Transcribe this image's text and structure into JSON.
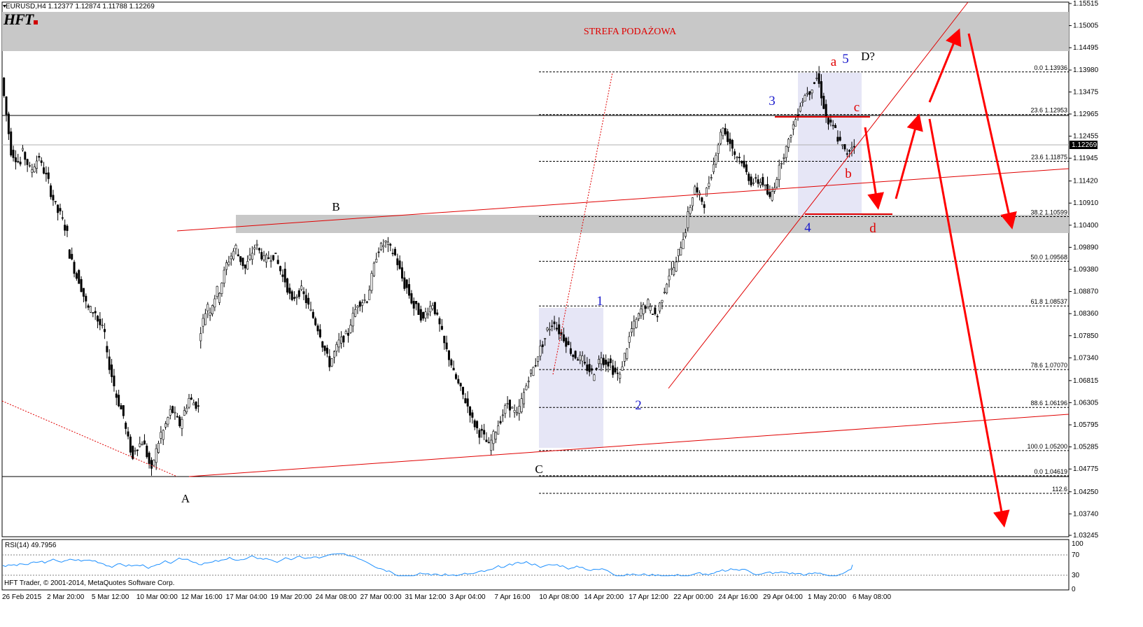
{
  "symbol_header": "EURUSD,H4  1.12377 1.12874 1.11788 1.12269",
  "logo_text": "HFT",
  "footer_text": "HFT Trader, © 2001-2014, MetaQuotes Software Corp.",
  "supply_zone_label": "STREFA PODAŻOWA",
  "rsi_label": "RSI(14) 49.7956",
  "current_price": "1.12269",
  "colors": {
    "candle": "#000000",
    "trend": "#e00000",
    "arrow": "#ff0000",
    "wave_blue": "#1a1acc",
    "zone": "#c8c8c8",
    "box": "#e6e6f6",
    "rsi": "#1e90ff"
  },
  "chart_data": {
    "type": "candlestick",
    "title": "EURUSD,H4",
    "ylim": [
      1.03245,
      1.15515
    ],
    "price_ticks": [
      "1.15515",
      "1.15005",
      "1.14495",
      "1.13980",
      "1.13475",
      "1.12965",
      "1.12455",
      "1.11945",
      "1.11420",
      "1.10910",
      "1.10400",
      "1.09890",
      "1.09380",
      "1.08870",
      "1.08360",
      "1.07850",
      "1.07340",
      "1.06815",
      "1.06305",
      "1.05795",
      "1.05285",
      "1.04775",
      "1.04250",
      "1.03740",
      "1.03245"
    ],
    "time_ticks": [
      "26 Feb 2015",
      "2 Mar 20:00",
      "5 Mar 12:00",
      "10 Mar 00:00",
      "12 Mar 16:00",
      "17 Mar 04:00",
      "19 Mar 20:00",
      "24 Mar 08:00",
      "27 Mar 00:00",
      "31 Mar 12:00",
      "3 Apr 04:00",
      "7 Apr 16:00",
      "10 Apr 08:00",
      "14 Apr 20:00",
      "17 Apr 12:00",
      "22 Apr 00:00",
      "24 Apr 16:00",
      "29 Apr 04:00",
      "1 May 20:00",
      "6 May 08:00"
    ],
    "close_path": [
      [
        1.138,
        1.121
      ],
      [
        1.121,
        1.118
      ],
      [
        1.122,
        1.117
      ],
      [
        1.116,
        1.12
      ],
      [
        1.119,
        1.114
      ],
      [
        1.113,
        1.107
      ],
      [
        1.108,
        1.102
      ],
      [
        1.099,
        1.092
      ],
      [
        1.093,
        1.086
      ],
      [
        1.085,
        1.084
      ],
      [
        1.083,
        1.079
      ],
      [
        1.076,
        1.067
      ],
      [
        1.066,
        1.06
      ],
      [
        1.059,
        1.05
      ],
      [
        1.052,
        1.054
      ],
      [
        1.055,
        1.047
      ],
      [
        1.048,
        1.056
      ],
      [
        1.055,
        1.061
      ],
      [
        1.062,
        1.058
      ],
      [
        1.058,
        1.064
      ],
      [
        1.064,
        1.062
      ],
      [
        1.078,
        1.086
      ],
      [
        1.083,
        1.089
      ],
      [
        1.087,
        1.095
      ],
      [
        1.095,
        1.099
      ],
      [
        1.098,
        1.094
      ],
      [
        1.094,
        1.099
      ],
      [
        1.1,
        1.096
      ],
      [
        1.096,
        1.097
      ],
      [
        1.098,
        1.092
      ],
      [
        1.093,
        1.086
      ],
      [
        1.087,
        1.089
      ],
      [
        1.089,
        1.084
      ],
      [
        1.084,
        1.079
      ],
      [
        1.078,
        1.072
      ],
      [
        1.072,
        1.077
      ],
      [
        1.077,
        1.079
      ],
      [
        1.08,
        1.086
      ],
      [
        1.086,
        1.087
      ],
      [
        1.087,
        1.097
      ],
      [
        1.098,
        1.1
      ],
      [
        1.1,
        1.097
      ],
      [
        1.097,
        1.09
      ],
      [
        1.091,
        1.085
      ],
      [
        1.086,
        1.082
      ],
      [
        1.083,
        1.086
      ],
      [
        1.086,
        1.079
      ],
      [
        1.078,
        1.072
      ],
      [
        1.071,
        1.066
      ],
      [
        1.066,
        1.061
      ],
      [
        1.06,
        1.056
      ],
      [
        1.057,
        1.053
      ],
      [
        1.053,
        1.058
      ],
      [
        1.058,
        1.063
      ],
      [
        1.063,
        1.06
      ],
      [
        1.06,
        1.067
      ],
      [
        1.068,
        1.072
      ],
      [
        1.073,
        1.078
      ],
      [
        1.079,
        1.082
      ],
      [
        1.081,
        1.078
      ],
      [
        1.078,
        1.074
      ],
      [
        1.074,
        1.073
      ],
      [
        1.072,
        1.07
      ],
      [
        1.069,
        1.074
      ],
      [
        1.073,
        1.072
      ],
      [
        1.071,
        1.069
      ],
      [
        1.07,
        1.078
      ],
      [
        1.079,
        1.083
      ],
      [
        1.084,
        1.086
      ],
      [
        1.085,
        1.083
      ],
      [
        1.084,
        1.091
      ],
      [
        1.092,
        1.095
      ],
      [
        1.096,
        1.103
      ],
      [
        1.104,
        1.113
      ],
      [
        1.112,
        1.109
      ],
      [
        1.11,
        1.118
      ],
      [
        1.119,
        1.127
      ],
      [
        1.126,
        1.122
      ],
      [
        1.121,
        1.119
      ],
      [
        1.118,
        1.114
      ],
      [
        1.114,
        1.114
      ],
      [
        1.115,
        1.11
      ],
      [
        1.11,
        1.117
      ],
      [
        1.118,
        1.123
      ],
      [
        1.124,
        1.13
      ],
      [
        1.131,
        1.135
      ],
      [
        1.134,
        1.138
      ],
      [
        1.139,
        1.129
      ],
      [
        1.128,
        1.126
      ],
      [
        1.125,
        1.121
      ],
      [
        1.12,
        1.123
      ]
    ],
    "rsi": {
      "period": 14,
      "value": 49.7956,
      "levels": [
        30,
        70
      ],
      "range": [
        0,
        100
      ]
    },
    "fibonacci_levels": [
      {
        "ratio": "0.0",
        "price": "1.13936"
      },
      {
        "ratio": "23.6",
        "price": "1.12953"
      },
      {
        "ratio": "23.6",
        "price": "1.11875"
      },
      {
        "ratio": "38.2",
        "price": "1.10599"
      },
      {
        "ratio": "50.0",
        "price": "1.09568"
      },
      {
        "ratio": "61.8",
        "price": "1.08537"
      },
      {
        "ratio": "78.6",
        "price": "1.07070"
      },
      {
        "ratio": "88.6",
        "price": "1.06196"
      },
      {
        "ratio": "100.0",
        "price": "1.05200"
      },
      {
        "ratio": "0.0",
        "price": "1.04619"
      },
      {
        "ratio": "112.6",
        "price": ""
      }
    ],
    "wave_labels": {
      "black": [
        "A",
        "B",
        "C",
        "D?"
      ],
      "blue": [
        "1",
        "2",
        "3",
        "4",
        "5"
      ],
      "red": [
        "a",
        "b",
        "c",
        "d"
      ]
    }
  }
}
